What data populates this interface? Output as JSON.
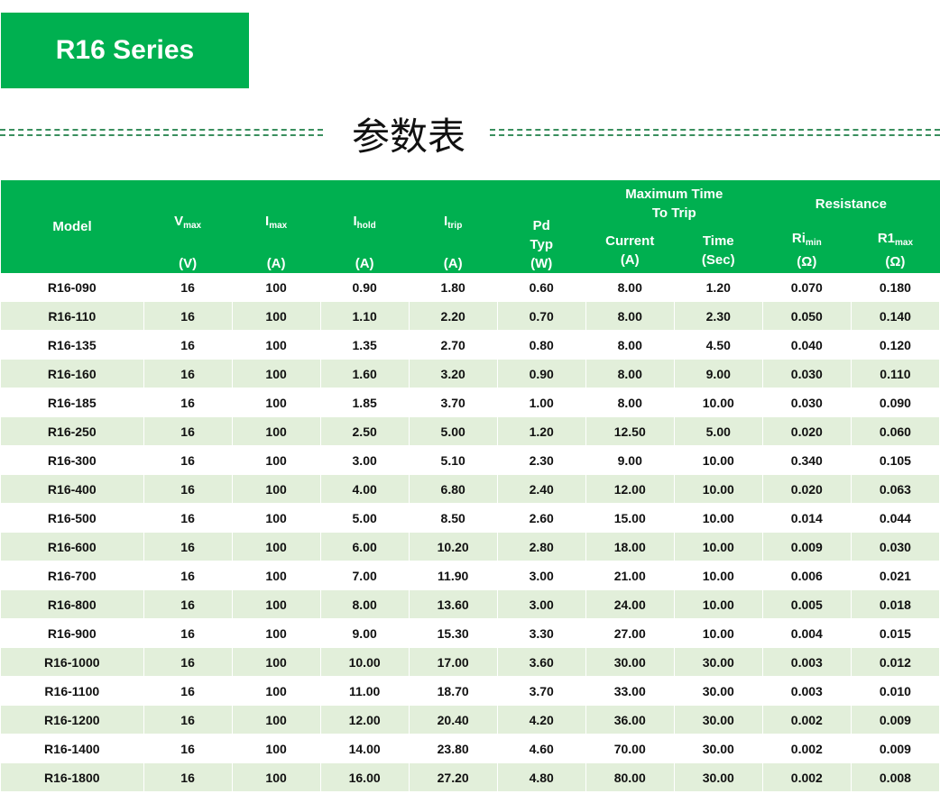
{
  "banner": "R16 Series",
  "title": "参数表",
  "header": {
    "model": "Model",
    "vmax": "V",
    "vmax_sub": "max",
    "imax": "I",
    "imax_sub": "max",
    "ihold": "I",
    "ihold_sub": "hold",
    "itrip": "I",
    "itrip_sub": "trip",
    "unit_v": "(V)",
    "unit_a": "(A)",
    "pd": "Pd",
    "typ": "Typ",
    "unit_w": "(W)",
    "ttt": "Maximum Time To Trip",
    "current": "Current",
    "time": "Time",
    "unit_sec": "(Sec)",
    "resistance": "Resistance",
    "rimin": "Ri",
    "rimin_sub": "min",
    "r1max": "R1",
    "r1max_sub": "max",
    "unit_ohm": "(Ω)"
  },
  "rows": [
    [
      "R16-090",
      "16",
      "100",
      "0.90",
      "1.80",
      "0.60",
      "8.00",
      "1.20",
      "0.070",
      "0.180"
    ],
    [
      "R16-110",
      "16",
      "100",
      "1.10",
      "2.20",
      "0.70",
      "8.00",
      "2.30",
      "0.050",
      "0.140"
    ],
    [
      "R16-135",
      "16",
      "100",
      "1.35",
      "2.70",
      "0.80",
      "8.00",
      "4.50",
      "0.040",
      "0.120"
    ],
    [
      "R16-160",
      "16",
      "100",
      "1.60",
      "3.20",
      "0.90",
      "8.00",
      "9.00",
      "0.030",
      "0.110"
    ],
    [
      "R16-185",
      "16",
      "100",
      "1.85",
      "3.70",
      "1.00",
      "8.00",
      "10.00",
      "0.030",
      "0.090"
    ],
    [
      "R16-250",
      "16",
      "100",
      "2.50",
      "5.00",
      "1.20",
      "12.50",
      "5.00",
      "0.020",
      "0.060"
    ],
    [
      "R16-300",
      "16",
      "100",
      "3.00",
      "5.10",
      "2.30",
      "9.00",
      "10.00",
      "0.340",
      "0.105"
    ],
    [
      "R16-400",
      "16",
      "100",
      "4.00",
      "6.80",
      "2.40",
      "12.00",
      "10.00",
      "0.020",
      "0.063"
    ],
    [
      "R16-500",
      "16",
      "100",
      "5.00",
      "8.50",
      "2.60",
      "15.00",
      "10.00",
      "0.014",
      "0.044"
    ],
    [
      "R16-600",
      "16",
      "100",
      "6.00",
      "10.20",
      "2.80",
      "18.00",
      "10.00",
      "0.009",
      "0.030"
    ],
    [
      "R16-700",
      "16",
      "100",
      "7.00",
      "11.90",
      "3.00",
      "21.00",
      "10.00",
      "0.006",
      "0.021"
    ],
    [
      "R16-800",
      "16",
      "100",
      "8.00",
      "13.60",
      "3.00",
      "24.00",
      "10.00",
      "0.005",
      "0.018"
    ],
    [
      "R16-900",
      "16",
      "100",
      "9.00",
      "15.30",
      "3.30",
      "27.00",
      "10.00",
      "0.004",
      "0.015"
    ],
    [
      "R16-1000",
      "16",
      "100",
      "10.00",
      "17.00",
      "3.60",
      "30.00",
      "30.00",
      "0.003",
      "0.012"
    ],
    [
      "R16-1100",
      "16",
      "100",
      "11.00",
      "18.70",
      "3.70",
      "33.00",
      "30.00",
      "0.003",
      "0.010"
    ],
    [
      "R16-1200",
      "16",
      "100",
      "12.00",
      "20.40",
      "4.20",
      "36.00",
      "30.00",
      "0.002",
      "0.009"
    ],
    [
      "R16-1400",
      "16",
      "100",
      "14.00",
      "23.80",
      "4.60",
      "70.00",
      "30.00",
      "0.002",
      "0.009"
    ],
    [
      "R16-1800",
      "16",
      "100",
      "16.00",
      "27.20",
      "4.80",
      "80.00",
      "30.00",
      "0.002",
      "0.008"
    ]
  ],
  "colors": {
    "green": "#00b050",
    "alt_row": "#e2efda"
  }
}
